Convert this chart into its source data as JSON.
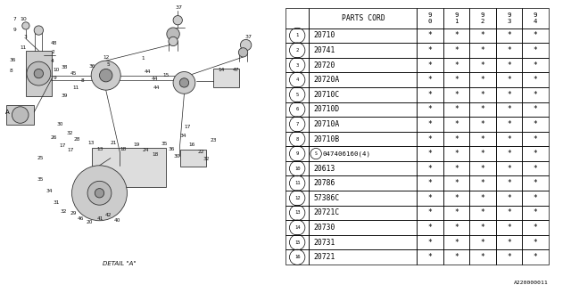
{
  "footer": "A220000011",
  "table_header_col1": "PARTS CORD",
  "table_years": [
    "9\n0",
    "9\n1",
    "9\n2",
    "9\n3",
    "9\n4"
  ],
  "parts": [
    {
      "num": 1,
      "code": "20710"
    },
    {
      "num": 2,
      "code": "20741"
    },
    {
      "num": 3,
      "code": "20720"
    },
    {
      "num": 4,
      "code": "20720A"
    },
    {
      "num": 5,
      "code": "20710C"
    },
    {
      "num": 6,
      "code": "20710D"
    },
    {
      "num": 7,
      "code": "20710A"
    },
    {
      "num": 8,
      "code": "20710B"
    },
    {
      "num": 9,
      "code": "047406160(4)",
      "prefix_s": true
    },
    {
      "num": 10,
      "code": "20613"
    },
    {
      "num": 11,
      "code": "20786"
    },
    {
      "num": 12,
      "code": "57386C"
    },
    {
      "num": 13,
      "code": "20721C"
    },
    {
      "num": 14,
      "code": "20730"
    },
    {
      "num": 15,
      "code": "20731"
    },
    {
      "num": 16,
      "code": "20721"
    }
  ],
  "bg_color": "#ffffff",
  "line_color": "#000000",
  "text_color": "#000000"
}
